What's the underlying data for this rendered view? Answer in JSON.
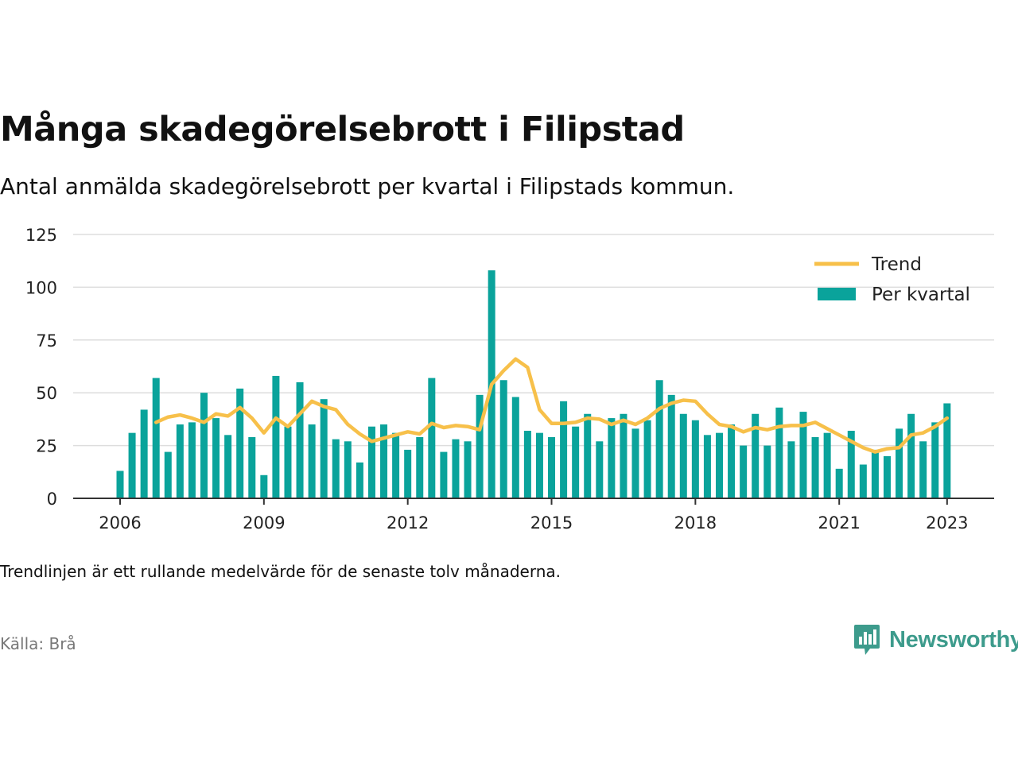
{
  "title": "Många skadegörelsebrott i Filipstad",
  "subtitle": "Antal anmälda skadegörelsebrott per kvartal i Filipstads kommun.",
  "note": "Trendlinjen är ett rullande medelvärde för de senaste tolv månaderna.",
  "source": "Källa: Brå",
  "brand": {
    "name": "Newsworthy",
    "icon": "newsworthy-logo-icon",
    "color": "#3d9b8c"
  },
  "colors": {
    "bar": "#0aa39b",
    "trend": "#f7c04a",
    "grid": "#dddddd",
    "axis": "#333333"
  },
  "chart_data": {
    "type": "bar",
    "title": "",
    "xlabel": "",
    "ylabel": "",
    "ylim": [
      0,
      125
    ],
    "yticks": [
      0,
      25,
      50,
      75,
      100,
      125
    ],
    "xticks": [
      "2006",
      "2009",
      "2012",
      "2015",
      "2018",
      "2021",
      "2023"
    ],
    "grid": true,
    "legend_position": "top-right",
    "start": "2006 Q1",
    "series": [
      {
        "name": "Per kvartal",
        "type": "bar",
        "values": [
          13,
          31,
          42,
          57,
          22,
          35,
          36,
          50,
          38,
          30,
          52,
          29,
          11,
          58,
          34,
          55,
          35,
          47,
          28,
          27,
          17,
          34,
          35,
          31,
          23,
          29,
          57,
          22,
          28,
          27,
          49,
          108,
          56,
          48,
          32,
          31,
          29,
          46,
          34,
          40,
          27,
          38,
          40,
          33,
          37,
          56,
          49,
          40,
          37,
          30,
          31,
          35,
          25,
          40,
          25,
          43,
          27,
          41,
          29,
          31,
          14,
          32,
          16,
          23,
          20,
          33,
          40,
          27,
          36,
          45
        ]
      },
      {
        "name": "Trend",
        "type": "line",
        "values": [
          null,
          null,
          null,
          36,
          38.5,
          39.5,
          38,
          36,
          40,
          39,
          43,
          38,
          31,
          38,
          34,
          40,
          46,
          43.5,
          42,
          35,
          30.5,
          27,
          28.5,
          30,
          31.5,
          30.5,
          35.5,
          33.5,
          34.5,
          34,
          32.5,
          54,
          60.5,
          66,
          62,
          42,
          35.5,
          35.5,
          36,
          38,
          37.5,
          35,
          37,
          35,
          38,
          42.5,
          45,
          46.5,
          46,
          40,
          35,
          34,
          31.5,
          33.5,
          32.5,
          34,
          34.5,
          34.5,
          36,
          33,
          30,
          27,
          24,
          22,
          23.5,
          24,
          30,
          31,
          34,
          38
        ]
      }
    ]
  }
}
